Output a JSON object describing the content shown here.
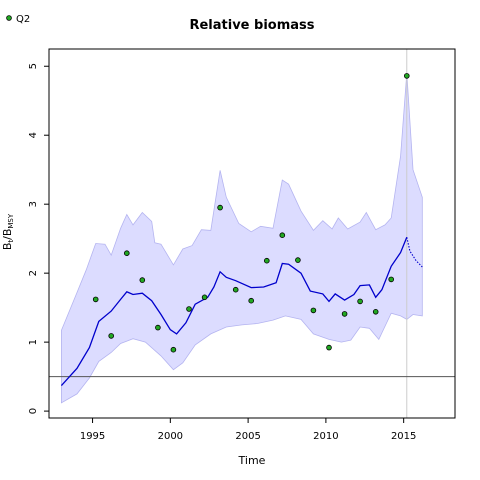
{
  "chart_data": {
    "type": "line",
    "title": "Relative biomass",
    "xlabel": "Time",
    "ylabel": {
      "main": "B",
      "sub1": "t",
      "slash": "/B",
      "sub2": "MSY"
    },
    "xlim": [
      1992.2,
      2018.3
    ],
    "ylim": [
      -0.1,
      5.25
    ],
    "xticks": [
      1995,
      2000,
      2005,
      2010,
      2015
    ],
    "yticks": [
      0,
      1,
      2,
      3,
      4,
      5
    ],
    "reference_line_y": 0.5,
    "forecast_start_x": 2015.2,
    "legend": {
      "position": "top-left",
      "entries": [
        {
          "name": "Q2",
          "marker": "point"
        }
      ]
    },
    "colors": {
      "line": "#0000cc",
      "band": "#dcdcff",
      "band_edge": "#b4b4f0",
      "points": "#22a822",
      "refline": "#555555",
      "vline": "#cccccc"
    },
    "estimate": [
      {
        "x": 1993.0,
        "y": 0.37
      },
      {
        "x": 1994.0,
        "y": 0.62
      },
      {
        "x": 1994.8,
        "y": 0.92
      },
      {
        "x": 1995.4,
        "y": 1.3
      },
      {
        "x": 1996.2,
        "y": 1.45
      },
      {
        "x": 1996.8,
        "y": 1.62
      },
      {
        "x": 1997.2,
        "y": 1.73
      },
      {
        "x": 1997.6,
        "y": 1.69
      },
      {
        "x": 1998.2,
        "y": 1.71
      },
      {
        "x": 1998.8,
        "y": 1.6
      },
      {
        "x": 1999.4,
        "y": 1.4
      },
      {
        "x": 2000.0,
        "y": 1.18
      },
      {
        "x": 2000.4,
        "y": 1.12
      },
      {
        "x": 2001.0,
        "y": 1.28
      },
      {
        "x": 2001.6,
        "y": 1.55
      },
      {
        "x": 2002.4,
        "y": 1.65
      },
      {
        "x": 2002.8,
        "y": 1.8
      },
      {
        "x": 2003.2,
        "y": 2.02
      },
      {
        "x": 2003.6,
        "y": 1.94
      },
      {
        "x": 2004.2,
        "y": 1.89
      },
      {
        "x": 2005.2,
        "y": 1.79
      },
      {
        "x": 2006.0,
        "y": 1.8
      },
      {
        "x": 2006.8,
        "y": 1.86
      },
      {
        "x": 2007.2,
        "y": 2.14
      },
      {
        "x": 2007.6,
        "y": 2.13
      },
      {
        "x": 2008.4,
        "y": 2.0
      },
      {
        "x": 2009.0,
        "y": 1.74
      },
      {
        "x": 2009.8,
        "y": 1.7
      },
      {
        "x": 2010.2,
        "y": 1.59
      },
      {
        "x": 2010.6,
        "y": 1.7
      },
      {
        "x": 2011.2,
        "y": 1.61
      },
      {
        "x": 2011.8,
        "y": 1.69
      },
      {
        "x": 2012.2,
        "y": 1.82
      },
      {
        "x": 2012.8,
        "y": 1.83
      },
      {
        "x": 2013.2,
        "y": 1.65
      },
      {
        "x": 2013.6,
        "y": 1.76
      },
      {
        "x": 2014.2,
        "y": 2.1
      },
      {
        "x": 2014.8,
        "y": 2.3
      },
      {
        "x": 2015.2,
        "y": 2.52
      }
    ],
    "forecast": [
      {
        "x": 2015.2,
        "y": 2.52
      },
      {
        "x": 2015.4,
        "y": 2.32
      },
      {
        "x": 2015.8,
        "y": 2.18
      },
      {
        "x": 2016.2,
        "y": 2.09
      }
    ],
    "band_upper": [
      {
        "x": 1993.0,
        "y": 1.17
      },
      {
        "x": 1994.0,
        "y": 1.72
      },
      {
        "x": 1994.6,
        "y": 2.05
      },
      {
        "x": 1995.2,
        "y": 2.43
      },
      {
        "x": 1995.8,
        "y": 2.42
      },
      {
        "x": 1996.2,
        "y": 2.26
      },
      {
        "x": 1996.8,
        "y": 2.65
      },
      {
        "x": 1997.2,
        "y": 2.85
      },
      {
        "x": 1997.6,
        "y": 2.7
      },
      {
        "x": 1998.2,
        "y": 2.88
      },
      {
        "x": 1998.8,
        "y": 2.75
      },
      {
        "x": 1999.0,
        "y": 2.44
      },
      {
        "x": 1999.4,
        "y": 2.42
      },
      {
        "x": 2000.2,
        "y": 2.12
      },
      {
        "x": 2000.8,
        "y": 2.35
      },
      {
        "x": 2001.4,
        "y": 2.4
      },
      {
        "x": 2002.0,
        "y": 2.63
      },
      {
        "x": 2002.6,
        "y": 2.62
      },
      {
        "x": 2003.2,
        "y": 3.49
      },
      {
        "x": 2003.6,
        "y": 3.1
      },
      {
        "x": 2004.4,
        "y": 2.72
      },
      {
        "x": 2005.2,
        "y": 2.6
      },
      {
        "x": 2005.8,
        "y": 2.68
      },
      {
        "x": 2006.6,
        "y": 2.65
      },
      {
        "x": 2007.2,
        "y": 3.35
      },
      {
        "x": 2007.6,
        "y": 3.29
      },
      {
        "x": 2008.4,
        "y": 2.9
      },
      {
        "x": 2009.2,
        "y": 2.62
      },
      {
        "x": 2009.8,
        "y": 2.76
      },
      {
        "x": 2010.4,
        "y": 2.64
      },
      {
        "x": 2010.8,
        "y": 2.8
      },
      {
        "x": 2011.4,
        "y": 2.64
      },
      {
        "x": 2012.2,
        "y": 2.74
      },
      {
        "x": 2012.6,
        "y": 2.88
      },
      {
        "x": 2013.2,
        "y": 2.63
      },
      {
        "x": 2013.8,
        "y": 2.7
      },
      {
        "x": 2014.2,
        "y": 2.8
      },
      {
        "x": 2014.8,
        "y": 3.7
      },
      {
        "x": 2015.2,
        "y": 4.9
      },
      {
        "x": 2015.6,
        "y": 3.5
      },
      {
        "x": 2016.2,
        "y": 3.1
      }
    ],
    "band_lower": [
      {
        "x": 1993.0,
        "y": 0.12
      },
      {
        "x": 1994.0,
        "y": 0.25
      },
      {
        "x": 1994.8,
        "y": 0.48
      },
      {
        "x": 1995.4,
        "y": 0.72
      },
      {
        "x": 1996.2,
        "y": 0.85
      },
      {
        "x": 1996.8,
        "y": 0.98
      },
      {
        "x": 1997.6,
        "y": 1.05
      },
      {
        "x": 1998.4,
        "y": 1.0
      },
      {
        "x": 1999.4,
        "y": 0.8
      },
      {
        "x": 2000.2,
        "y": 0.6
      },
      {
        "x": 2000.8,
        "y": 0.7
      },
      {
        "x": 2001.6,
        "y": 0.96
      },
      {
        "x": 2002.6,
        "y": 1.12
      },
      {
        "x": 2003.6,
        "y": 1.22
      },
      {
        "x": 2004.6,
        "y": 1.25
      },
      {
        "x": 2005.6,
        "y": 1.27
      },
      {
        "x": 2006.6,
        "y": 1.32
      },
      {
        "x": 2007.4,
        "y": 1.38
      },
      {
        "x": 2008.4,
        "y": 1.33
      },
      {
        "x": 2009.2,
        "y": 1.12
      },
      {
        "x": 2010.2,
        "y": 1.04
      },
      {
        "x": 2011.0,
        "y": 1.0
      },
      {
        "x": 2011.6,
        "y": 1.03
      },
      {
        "x": 2012.2,
        "y": 1.22
      },
      {
        "x": 2012.8,
        "y": 1.2
      },
      {
        "x": 2013.4,
        "y": 1.04
      },
      {
        "x": 2014.2,
        "y": 1.42
      },
      {
        "x": 2014.8,
        "y": 1.38
      },
      {
        "x": 2015.2,
        "y": 1.33
      },
      {
        "x": 2015.6,
        "y": 1.4
      },
      {
        "x": 2016.2,
        "y": 1.38
      }
    ],
    "observations": [
      {
        "x": 1995.2,
        "y": 1.62
      },
      {
        "x": 1996.2,
        "y": 1.09
      },
      {
        "x": 1997.2,
        "y": 2.29
      },
      {
        "x": 1998.2,
        "y": 1.9
      },
      {
        "x": 1999.2,
        "y": 1.21
      },
      {
        "x": 2000.2,
        "y": 0.89
      },
      {
        "x": 2001.2,
        "y": 1.48
      },
      {
        "x": 2002.2,
        "y": 1.65
      },
      {
        "x": 2003.2,
        "y": 2.95
      },
      {
        "x": 2004.2,
        "y": 1.76
      },
      {
        "x": 2005.2,
        "y": 1.6
      },
      {
        "x": 2006.2,
        "y": 2.18
      },
      {
        "x": 2007.2,
        "y": 2.55
      },
      {
        "x": 2008.2,
        "y": 2.19
      },
      {
        "x": 2009.2,
        "y": 1.46
      },
      {
        "x": 2010.2,
        "y": 0.92
      },
      {
        "x": 2011.2,
        "y": 1.41
      },
      {
        "x": 2012.2,
        "y": 1.59
      },
      {
        "x": 2013.2,
        "y": 1.44
      },
      {
        "x": 2014.2,
        "y": 1.91
      },
      {
        "x": 2015.2,
        "y": 4.86
      }
    ]
  }
}
